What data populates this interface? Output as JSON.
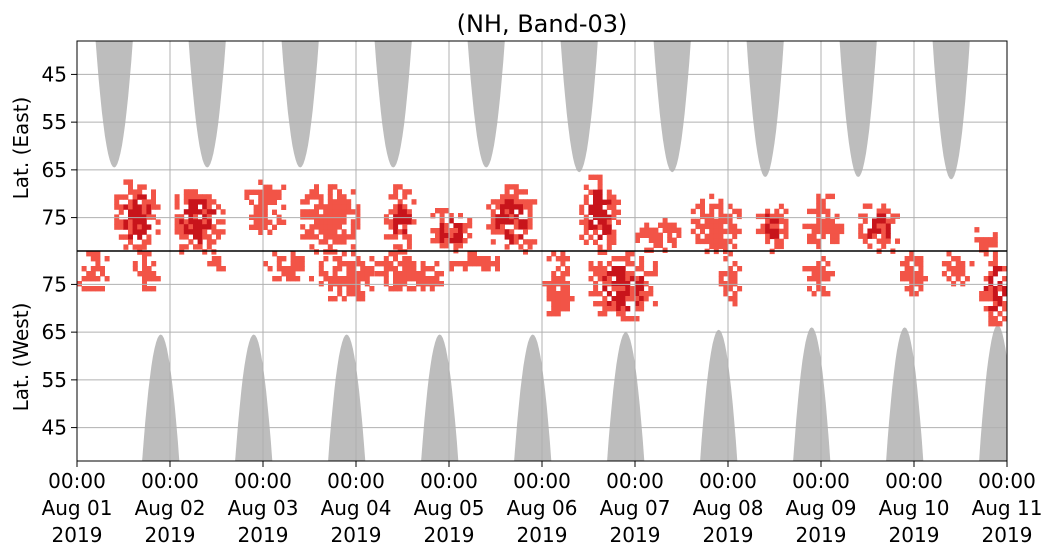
{
  "chart_data": {
    "type": "heatmap",
    "title": "(NH, Band-03)",
    "ylabel_top": "Lat. (East)",
    "ylabel_bottom": "Lat. (West)",
    "xlim_days": [
      0,
      10
    ],
    "x_ticks": [
      {
        "day": 0,
        "time": "00:00",
        "date": "Aug 01",
        "year": "2019"
      },
      {
        "day": 1,
        "time": "00:00",
        "date": "Aug 02",
        "year": "2019"
      },
      {
        "day": 2,
        "time": "00:00",
        "date": "Aug 03",
        "year": "2019"
      },
      {
        "day": 3,
        "time": "00:00",
        "date": "Aug 04",
        "year": "2019"
      },
      {
        "day": 4,
        "time": "00:00",
        "date": "Aug 05",
        "year": "2019"
      },
      {
        "day": 5,
        "time": "00:00",
        "date": "Aug 06",
        "year": "2019"
      },
      {
        "day": 6,
        "time": "00:00",
        "date": "Aug 07",
        "year": "2019"
      },
      {
        "day": 7,
        "time": "00:00",
        "date": "Aug 08",
        "year": "2019"
      },
      {
        "day": 8,
        "time": "00:00",
        "date": "Aug 09",
        "year": "2019"
      },
      {
        "day": 9,
        "time": "00:00",
        "date": "Aug 10",
        "year": "2019"
      },
      {
        "day": 10,
        "time": "00:00",
        "date": "Aug 11",
        "year": "2019"
      }
    ],
    "east_ticks": [
      45,
      55,
      65,
      75
    ],
    "west_ticks": [
      75,
      65,
      55,
      45
    ],
    "lat_range_per_half": [
      38,
      82
    ],
    "grid": true,
    "colors": {
      "echo_light": "#f25447",
      "echo_dark": "#c8141b",
      "no_coverage": "#bdbdbd",
      "grid": "#b0b0b0",
      "divider": "#000000"
    },
    "no_coverage_regions": {
      "east_center_days": [
        0.4,
        1.4,
        2.4,
        3.4,
        4.4,
        5.4,
        6.4,
        7.4,
        8.4,
        9.4
      ],
      "east_min_lat": [
        64.5,
        64.5,
        64.5,
        64.5,
        64.5,
        65.5,
        65.5,
        66.5,
        66.5,
        67
      ],
      "west_center_days": [
        0.9,
        1.9,
        2.9,
        3.9,
        4.9,
        5.9,
        6.9,
        7.9,
        8.9,
        9.9
      ],
      "west_min_lat": [
        64.5,
        64.5,
        64.5,
        64.5,
        64.5,
        65,
        65.5,
        66,
        66,
        66.5
      ],
      "half_width_days": 0.2
    },
    "echo_clusters": [
      {
        "day0": 0.0,
        "day1": 0.3,
        "half": "west",
        "lat0": 74,
        "lat1": 82,
        "intensity": "light"
      },
      {
        "day0": 0.4,
        "day1": 0.85,
        "half": "east",
        "lat0": 67,
        "lat1": 82,
        "intensity": "dark"
      },
      {
        "day0": 0.6,
        "day1": 0.85,
        "half": "west",
        "lat0": 74,
        "lat1": 82,
        "intensity": "light"
      },
      {
        "day0": 1.0,
        "day1": 1.55,
        "half": "east",
        "lat0": 68,
        "lat1": 82,
        "intensity": "dark"
      },
      {
        "day0": 1.35,
        "day1": 1.55,
        "half": "west",
        "lat0": 78,
        "lat1": 82,
        "intensity": "light"
      },
      {
        "day0": 1.8,
        "day1": 2.2,
        "half": "east",
        "lat0": 66,
        "lat1": 78,
        "intensity": "light"
      },
      {
        "day0": 2.0,
        "day1": 2.5,
        "half": "west",
        "lat0": 76,
        "lat1": 82,
        "intensity": "light"
      },
      {
        "day0": 2.4,
        "day1": 3.0,
        "half": "east",
        "lat0": 68,
        "lat1": 82,
        "intensity": "light"
      },
      {
        "day0": 2.6,
        "day1": 3.2,
        "half": "west",
        "lat0": 72,
        "lat1": 82,
        "intensity": "light"
      },
      {
        "day0": 3.3,
        "day1": 3.6,
        "half": "east",
        "lat0": 68,
        "lat1": 82,
        "intensity": "dark"
      },
      {
        "day0": 3.2,
        "day1": 3.9,
        "half": "west",
        "lat0": 74,
        "lat1": 82,
        "intensity": "light"
      },
      {
        "day0": 3.8,
        "day1": 4.2,
        "half": "east",
        "lat0": 73,
        "lat1": 82,
        "intensity": "dark"
      },
      {
        "day0": 4.0,
        "day1": 4.6,
        "half": "west",
        "lat0": 78,
        "lat1": 82,
        "intensity": "light"
      },
      {
        "day0": 4.4,
        "day1": 4.9,
        "half": "east",
        "lat0": 68,
        "lat1": 82,
        "intensity": "dark"
      },
      {
        "day0": 5.0,
        "day1": 5.3,
        "half": "west",
        "lat0": 68,
        "lat1": 82,
        "intensity": "light"
      },
      {
        "day0": 5.4,
        "day1": 5.8,
        "half": "east",
        "lat0": 66,
        "lat1": 82,
        "intensity": "dark"
      },
      {
        "day0": 5.5,
        "day1": 6.2,
        "half": "west",
        "lat0": 68,
        "lat1": 82,
        "intensity": "dark"
      },
      {
        "day0": 6.0,
        "day1": 6.5,
        "half": "east",
        "lat0": 75,
        "lat1": 82,
        "intensity": "light"
      },
      {
        "day0": 6.6,
        "day1": 7.1,
        "half": "east",
        "lat0": 70,
        "lat1": 82,
        "intensity": "light"
      },
      {
        "day0": 6.9,
        "day1": 7.1,
        "half": "west",
        "lat0": 71,
        "lat1": 82,
        "intensity": "light"
      },
      {
        "day0": 7.3,
        "day1": 7.6,
        "half": "east",
        "lat0": 70,
        "lat1": 82,
        "intensity": "dark"
      },
      {
        "day0": 7.8,
        "day1": 8.2,
        "half": "east",
        "lat0": 70,
        "lat1": 82,
        "intensity": "light"
      },
      {
        "day0": 7.8,
        "day1": 8.1,
        "half": "west",
        "lat0": 73,
        "lat1": 82,
        "intensity": "light"
      },
      {
        "day0": 8.4,
        "day1": 8.8,
        "half": "east",
        "lat0": 71,
        "lat1": 82,
        "intensity": "dark"
      },
      {
        "day0": 8.8,
        "day1": 9.1,
        "half": "west",
        "lat0": 73,
        "lat1": 82,
        "intensity": "light"
      },
      {
        "day0": 9.3,
        "day1": 9.6,
        "half": "west",
        "lat0": 75,
        "lat1": 82,
        "intensity": "light"
      },
      {
        "day0": 9.6,
        "day1": 9.9,
        "half": "east",
        "lat0": 77,
        "lat1": 82,
        "intensity": "light"
      },
      {
        "day0": 9.7,
        "day1": 10.0,
        "half": "west",
        "lat0": 67,
        "lat1": 82,
        "intensity": "dark"
      }
    ]
  }
}
